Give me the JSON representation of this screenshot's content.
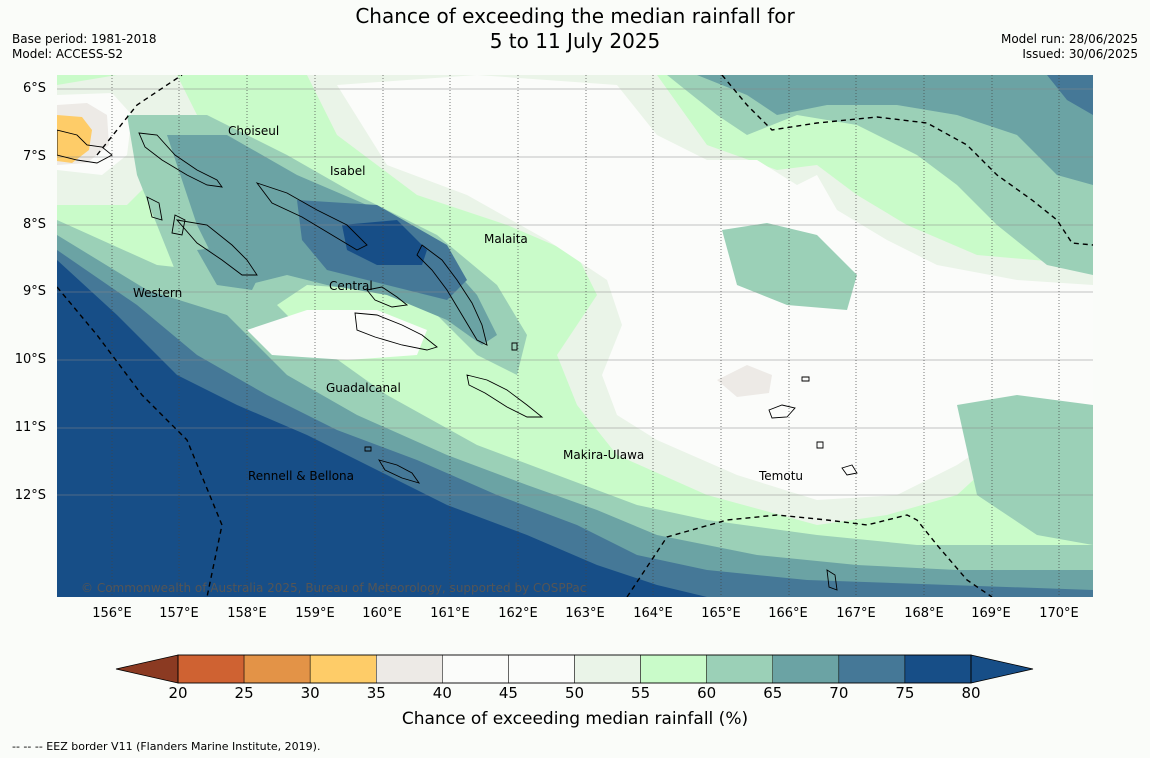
{
  "title_line1": "Chance of exceeding the median rainfall for",
  "title_line2": "5 to 11 July 2025",
  "base_period": "Base period: 1981-2018",
  "model": "Model: ACCESS-S2",
  "model_run": "Model run: 28/06/2025",
  "issued": "Issued: 30/06/2025",
  "lat_labels": [
    "6°S",
    "7°S",
    "8°S",
    "9°S",
    "10°S",
    "11°S",
    "12°S"
  ],
  "lon_labels": [
    "156°E",
    "157°E",
    "158°E",
    "159°E",
    "160°E",
    "161°E",
    "162°E",
    "163°E",
    "164°E",
    "165°E",
    "166°E",
    "167°E",
    "168°E",
    "169°E",
    "170°E"
  ],
  "regions": [
    "Choiseul",
    "Isabel",
    "Malaita",
    "Western",
    "Central",
    "Guadalcanal",
    "Makira-Ulawa",
    "Rennell & Bellona",
    "Temotu"
  ],
  "copyright": "© Commonwealth of Australia 2025, Bureau of Meteorology, supported by COSPPac",
  "colorbar": {
    "label": "Chance of exceeding median rainfall (%)",
    "ticks": [
      "20",
      "25",
      "30",
      "35",
      "40",
      "45",
      "50",
      "55",
      "60",
      "65",
      "70",
      "75",
      "80"
    ],
    "colors": [
      "#b2472b",
      "#cf6232",
      "#e39347",
      "#fecc68",
      "#edeae6",
      "#fbfcfa",
      "#fbfcfa",
      "#eaf4e8",
      "#c9fbc9",
      "#9bd0b7",
      "#6ba3a4",
      "#457897",
      "#174e87"
    ]
  },
  "footnote": "-- -- -- EEZ border V11 (Flanders Marine Institute, 2019)."
}
